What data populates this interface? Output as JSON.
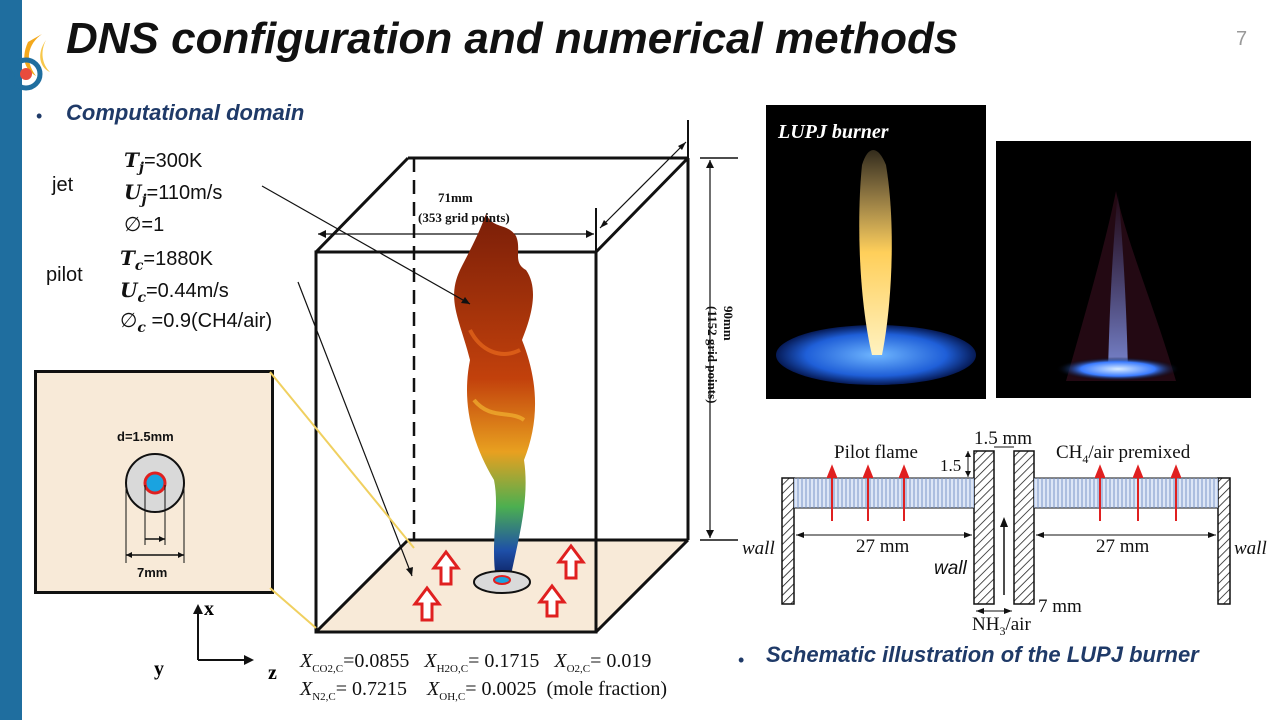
{
  "slide": {
    "title": "DNS configuration and numerical methods",
    "page_number": "7"
  },
  "bullets": {
    "computational_domain": "Computational domain",
    "schematic": "Schematic illustration of the LUPJ burner"
  },
  "jet": {
    "label": "jet",
    "T": "=300K",
    "U": "=110m/s",
    "phi": "=1"
  },
  "pilot": {
    "label": "pilot",
    "T": "=1880K",
    "U": "=0.44m/s",
    "phi": " =0.9(CH4/air)"
  },
  "inset": {
    "d_label": "d=1.5mm",
    "outer_label": "7mm"
  },
  "domain": {
    "width_label": "71mm",
    "width_points": "(353 grid points)",
    "height_label": "90mm",
    "height_points": "(1152 grid points)",
    "axis_x": "x",
    "axis_y": "y",
    "axis_z": "z"
  },
  "mole_fractions": {
    "co2": "=0.0855",
    "h2o": "= 0.1715",
    "o2": "= 0.019",
    "n2": "= 0.7215",
    "oh": "= 0.0025",
    "unit": "(mole fraction)"
  },
  "photos": {
    "left_label": "LUPJ burner"
  },
  "schematic": {
    "pilot_flame": "Pilot flame",
    "gap_label": "1.5 mm",
    "side_label": "1.5",
    "premixed": "CH",
    "premixed_sub": "4",
    "premixed_rest": "/air premixed",
    "wall_left": "wall",
    "wall_right": "wall",
    "wall_center": "wall",
    "dim_left": "27 mm",
    "dim_right": "27 mm",
    "dim_inner": "7 mm",
    "nh3": "NH",
    "nh3_sub": "3",
    "nh3_rest": "/air"
  },
  "colors": {
    "accent": "#1f6e9f",
    "bullet_text": "#1f3a68",
    "arrow_red": "#e02020",
    "floor": "#f8ead8"
  }
}
